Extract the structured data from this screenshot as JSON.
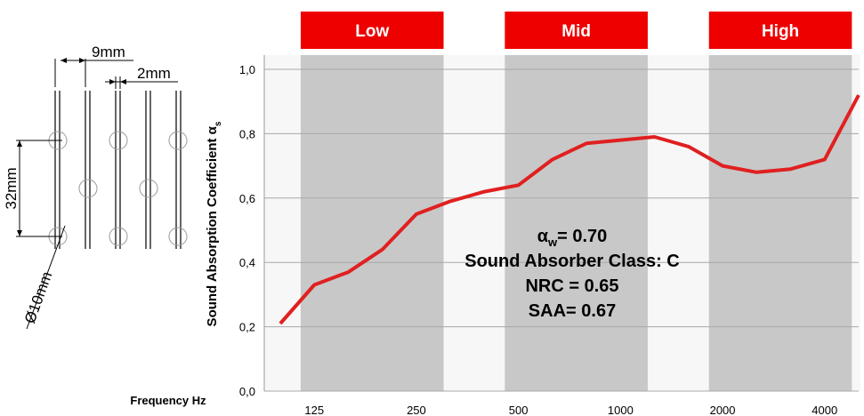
{
  "diagram": {
    "dim_spacing": "9mm",
    "dim_thickness": "2mm",
    "dim_pitch": "32mm",
    "dim_diameter": "Ø10mm"
  },
  "bands": [
    {
      "label": "Low",
      "color": "#ee0000"
    },
    {
      "label": "Mid",
      "color": "#ee0000"
    },
    {
      "label": "High",
      "color": "#ee0000"
    }
  ],
  "annotations": {
    "alpha_w_prefix": "α",
    "alpha_w_sub": "w",
    "alpha_w_value": "= 0.70",
    "absorber_class": "Sound Absorber Class: C",
    "nrc": "NRC = 0.65",
    "saa": "SAA= 0.67"
  },
  "chart_data": {
    "type": "line",
    "ylabel_main": "Sound Absorption Coefficient α",
    "ylabel_sub": "s",
    "xlabel": "Frequency Hz",
    "ylim": [
      0,
      1.0
    ],
    "yticks": [
      "0,0",
      "0,2",
      "0,4",
      "0,6",
      "0,8",
      "1,0"
    ],
    "ytick_values": [
      0,
      0.2,
      0.4,
      0.6,
      0.8,
      1.0
    ],
    "xtick_labels": [
      "125",
      "250",
      "500",
      "1000",
      "2000",
      "4000"
    ],
    "xtick_positions": [
      1,
      4,
      7,
      10,
      13,
      16
    ],
    "x_range": [
      0,
      17
    ],
    "shaded_bands": [
      [
        0.6,
        4.8
      ],
      [
        6.6,
        10.8
      ],
      [
        12.6,
        16.8
      ]
    ],
    "grid": true,
    "series": [
      {
        "color": "#e02020",
        "x": [
          0,
          1,
          2,
          3,
          4,
          5,
          6,
          7,
          8,
          9,
          10,
          11,
          12,
          13,
          14,
          15,
          16,
          17
        ],
        "values": [
          0.21,
          0.33,
          0.37,
          0.44,
          0.55,
          0.59,
          0.62,
          0.64,
          0.72,
          0.77,
          0.78,
          0.79,
          0.76,
          0.7,
          0.68,
          0.69,
          0.72,
          0.92
        ]
      }
    ]
  }
}
